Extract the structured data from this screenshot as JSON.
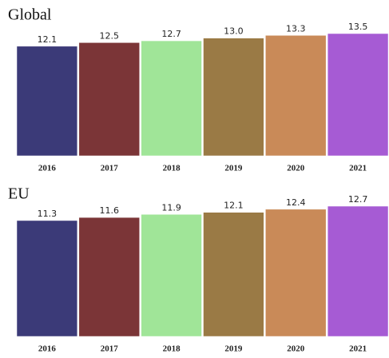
{
  "chart_data": [
    {
      "type": "bar",
      "title": "Global",
      "categories": [
        "2016",
        "2017",
        "2018",
        "2019",
        "2020",
        "2021"
      ],
      "values": [
        12.1,
        12.5,
        12.7,
        13.0,
        13.3,
        13.5
      ],
      "value_labels": [
        "12.1",
        "12.5",
        "12.7",
        "13.0",
        "13.3",
        "13.5"
      ],
      "colors": [
        "#3b3a78",
        "#7b3537",
        "#a0e598",
        "#9a7a45",
        "#c98a58",
        "#a65bd4"
      ],
      "ylim": [
        0,
        13.5
      ]
    },
    {
      "type": "bar",
      "title": "EU",
      "categories": [
        "2016",
        "2017",
        "2018",
        "2019",
        "2020",
        "2021"
      ],
      "values": [
        11.3,
        11.6,
        11.9,
        12.1,
        12.4,
        12.7
      ],
      "value_labels": [
        "11.3",
        "11.6",
        "11.9",
        "12.1",
        "12.4",
        "12.7"
      ],
      "colors": [
        "#3b3a78",
        "#7b3537",
        "#a0e598",
        "#9a7a45",
        "#c98a58",
        "#a65bd4"
      ],
      "ylim": [
        0,
        12.7
      ]
    }
  ]
}
